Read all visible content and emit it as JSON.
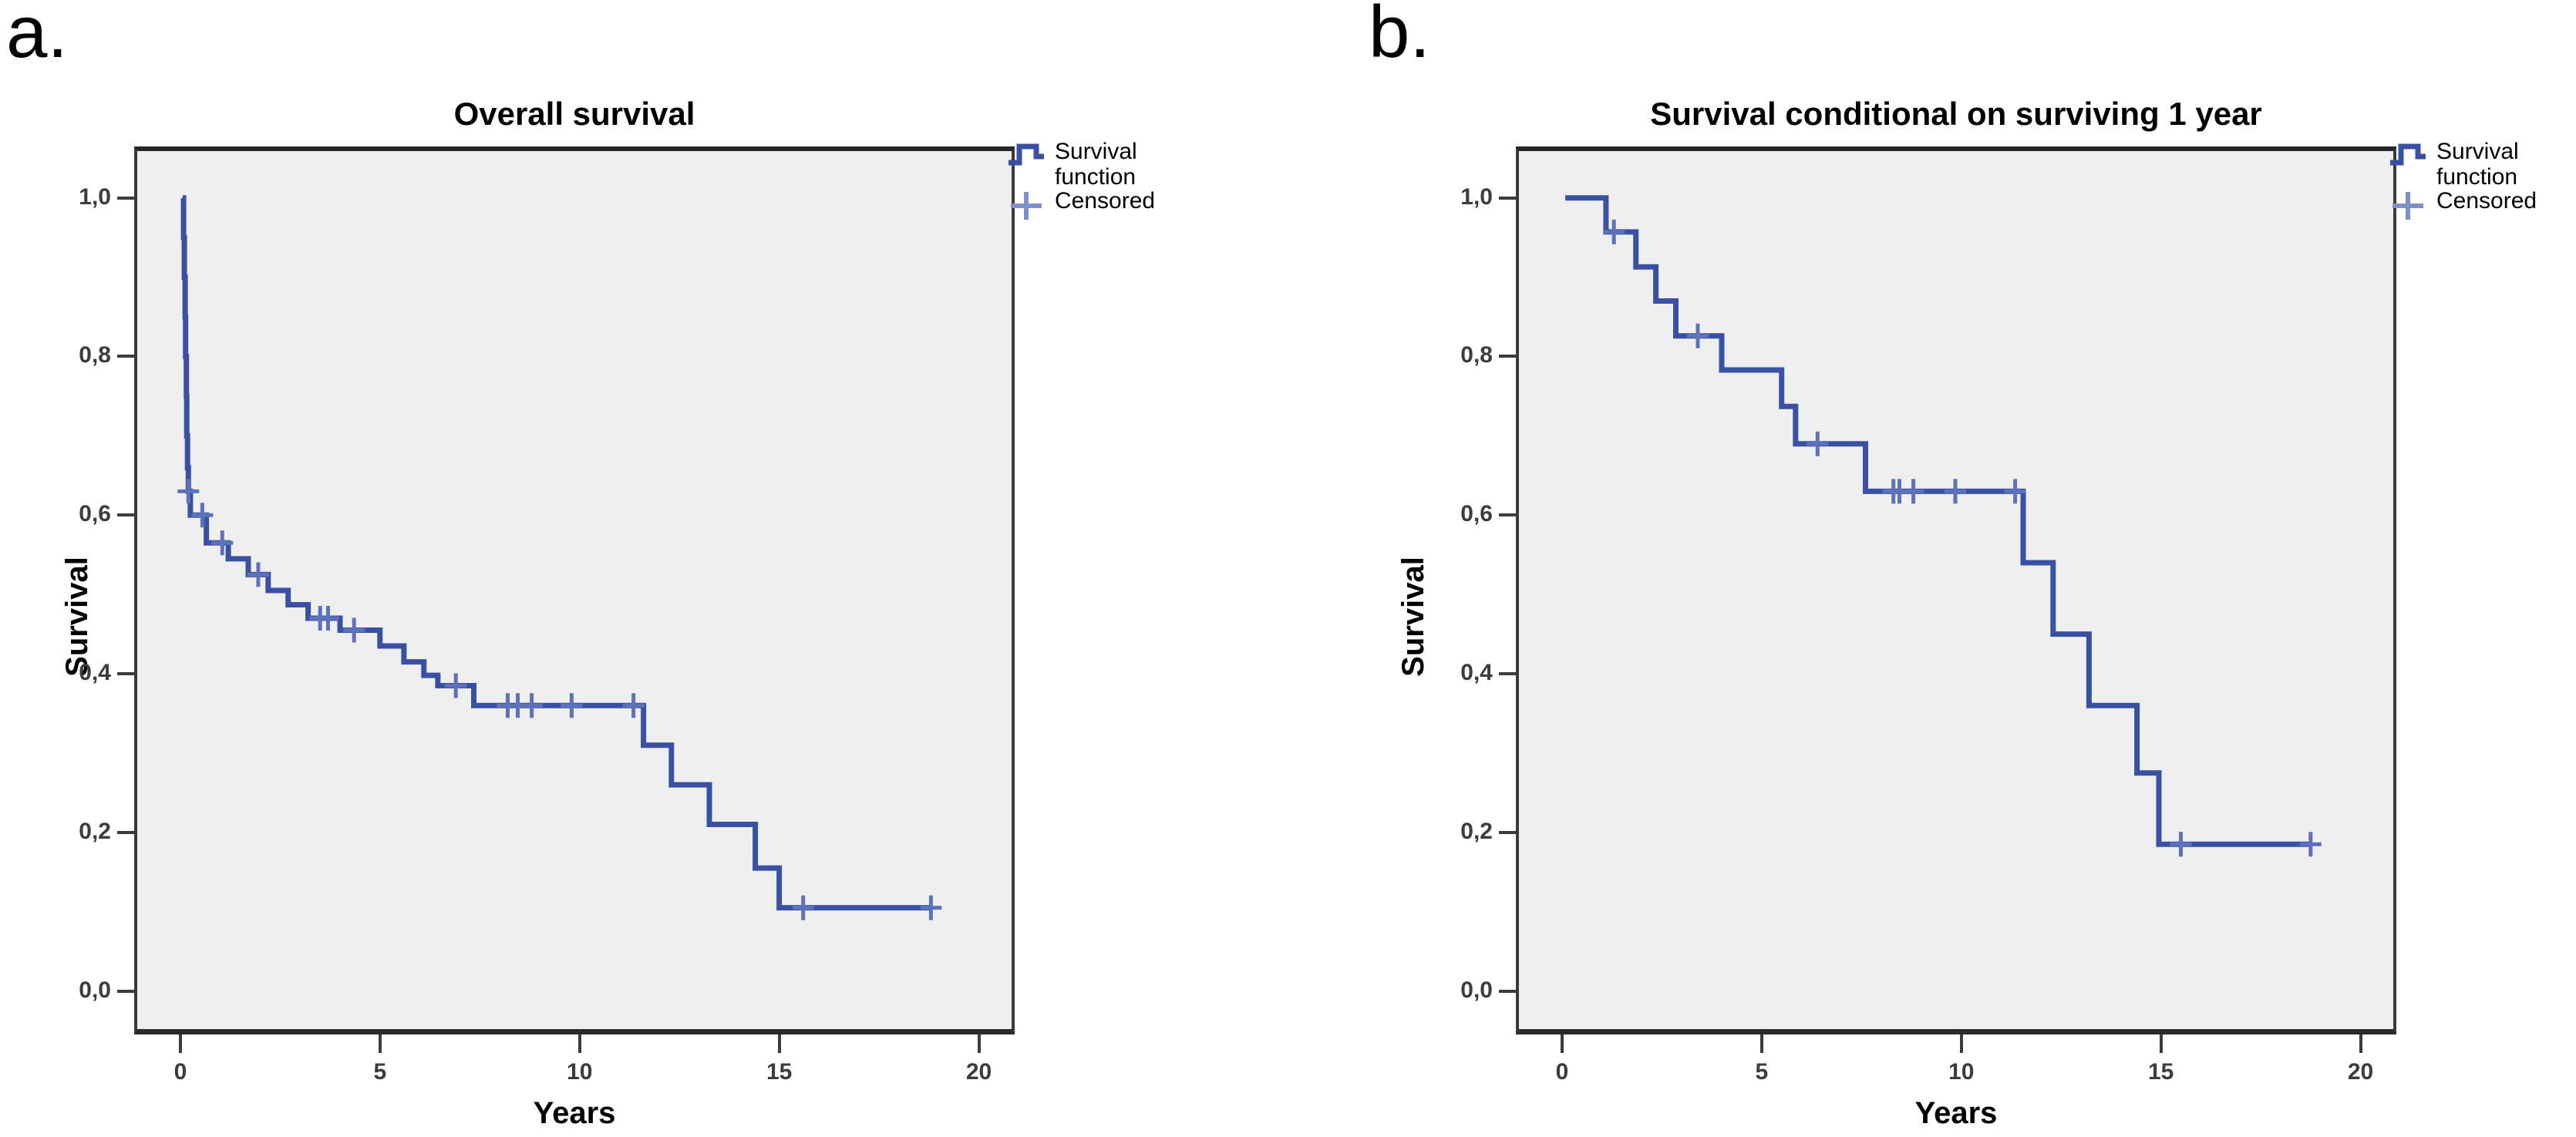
{
  "chart_data": [
    {
      "type": "line",
      "step": true,
      "panel_label": "a.",
      "title": "Overall survival",
      "xlabel": "Years",
      "ylabel": "Survival",
      "xlim": [
        -1.08,
        20.82
      ],
      "ylim": [
        -0.048,
        1.059
      ],
      "x_ticks": [
        0,
        5,
        10,
        15,
        20
      ],
      "y_ticks": [
        1.0,
        0.8,
        0.6,
        0.4,
        0.2,
        0.0
      ],
      "y_tick_labels": [
        "1,0",
        "0,8",
        "0,6",
        "0,4",
        "0,2",
        "0,0"
      ],
      "grid": false,
      "legend": {
        "position": "right",
        "items": [
          {
            "label": "Survival function",
            "symbol": "step-line"
          },
          {
            "label": "Censored",
            "symbol": "plus"
          }
        ]
      },
      "series": [
        {
          "name": "Survival function",
          "points": [
            [
              0.06,
              1.0
            ],
            [
              0.08,
              0.95
            ],
            [
              0.1,
              0.9
            ],
            [
              0.12,
              0.85
            ],
            [
              0.13,
              0.8
            ],
            [
              0.15,
              0.75
            ],
            [
              0.16,
              0.7
            ],
            [
              0.18,
              0.66
            ],
            [
              0.2,
              0.63
            ],
            [
              0.25,
              0.6
            ],
            [
              0.65,
              0.565
            ],
            [
              1.2,
              0.545
            ],
            [
              1.7,
              0.525
            ],
            [
              2.2,
              0.505
            ],
            [
              2.7,
              0.487
            ],
            [
              3.2,
              0.47
            ],
            [
              4.0,
              0.455
            ],
            [
              5.0,
              0.435
            ],
            [
              5.6,
              0.415
            ],
            [
              6.1,
              0.398
            ],
            [
              6.45,
              0.385
            ],
            [
              7.35,
              0.36
            ],
            [
              11.6,
              0.31
            ],
            [
              12.3,
              0.26
            ],
            [
              13.25,
              0.21
            ],
            [
              14.4,
              0.155
            ],
            [
              15.0,
              0.105
            ],
            [
              18.8,
              0.105
            ]
          ]
        }
      ],
      "censored_points": [
        [
          0.2,
          0.63
        ],
        [
          0.55,
          0.6
        ],
        [
          1.05,
          0.565
        ],
        [
          1.95,
          0.525
        ],
        [
          3.5,
          0.47
        ],
        [
          3.7,
          0.47
        ],
        [
          4.35,
          0.455
        ],
        [
          6.9,
          0.385
        ],
        [
          8.2,
          0.36
        ],
        [
          8.45,
          0.36
        ],
        [
          8.8,
          0.36
        ],
        [
          9.8,
          0.36
        ],
        [
          11.35,
          0.36
        ],
        [
          15.6,
          0.105
        ],
        [
          18.8,
          0.105
        ]
      ]
    },
    {
      "type": "line",
      "step": true,
      "panel_label": "b.",
      "title": "Survival conditional on surviving 1 year",
      "xlabel": "Years",
      "ylabel": "Survival",
      "xlim": [
        -1.08,
        20.82
      ],
      "ylim": [
        -0.048,
        1.059
      ],
      "x_ticks": [
        0,
        5,
        10,
        15,
        20
      ],
      "y_ticks": [
        1.0,
        0.8,
        0.6,
        0.4,
        0.2,
        0.0
      ],
      "y_tick_labels": [
        "1,0",
        "0,8",
        "0,6",
        "0,4",
        "0,2",
        "0,0"
      ],
      "grid": false,
      "legend": {
        "position": "right",
        "items": [
          {
            "label": "Survival function",
            "symbol": "step-line"
          },
          {
            "label": "Censored",
            "symbol": "plus"
          }
        ]
      },
      "series": [
        {
          "name": "Survival function",
          "points": [
            [
              0.08,
              1.0
            ],
            [
              1.1,
              0.957
            ],
            [
              1.85,
              0.913
            ],
            [
              2.35,
              0.87
            ],
            [
              2.85,
              0.826
            ],
            [
              4.0,
              0.783
            ],
            [
              5.5,
              0.737
            ],
            [
              5.85,
              0.69
            ],
            [
              7.6,
              0.63
            ],
            [
              11.55,
              0.54
            ],
            [
              12.3,
              0.45
            ],
            [
              13.2,
              0.36
            ],
            [
              14.4,
              0.275
            ],
            [
              14.95,
              0.185
            ],
            [
              18.75,
              0.185
            ]
          ]
        }
      ],
      "censored_points": [
        [
          1.3,
          0.957
        ],
        [
          3.4,
          0.826
        ],
        [
          6.4,
          0.69
        ],
        [
          8.3,
          0.63
        ],
        [
          8.45,
          0.63
        ],
        [
          8.8,
          0.63
        ],
        [
          9.85,
          0.63
        ],
        [
          11.35,
          0.63
        ],
        [
          15.5,
          0.185
        ],
        [
          18.75,
          0.185
        ]
      ]
    }
  ],
  "colors": {
    "line": "#3a50a3",
    "censor": "#5d72ba",
    "legend_censor": "#7e90ca",
    "plot_background": "#efefef",
    "plot_border": "#3a3a3a",
    "tick_text": "#3c3c3c",
    "text": "#000000"
  }
}
